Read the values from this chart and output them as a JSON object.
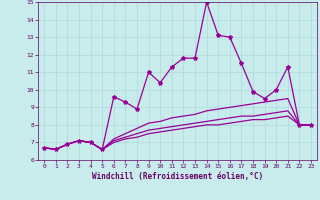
{
  "title": "",
  "xlabel": "Windchill (Refroidissement éolien,°C)",
  "ylabel": "",
  "background_color": "#c8ecec",
  "grid_color": "#b0d8d8",
  "line_color": "#990099",
  "xlim": [
    -0.5,
    23.5
  ],
  "ylim": [
    6,
    15
  ],
  "xticks": [
    0,
    1,
    2,
    3,
    4,
    5,
    6,
    7,
    8,
    9,
    10,
    11,
    12,
    13,
    14,
    15,
    16,
    17,
    18,
    19,
    20,
    21,
    22,
    23
  ],
  "yticks": [
    6,
    7,
    8,
    9,
    10,
    11,
    12,
    13,
    14,
    15
  ],
  "series": [
    [
      6.7,
      6.6,
      6.9,
      7.1,
      7.0,
      6.6,
      9.6,
      9.3,
      8.9,
      11.0,
      10.4,
      11.3,
      11.8,
      11.8,
      15.0,
      13.1,
      13.0,
      11.5,
      9.9,
      9.5,
      10.0,
      11.3,
      8.0,
      8.0
    ],
    [
      6.7,
      6.6,
      6.9,
      7.1,
      7.0,
      6.6,
      7.2,
      7.5,
      7.8,
      8.1,
      8.2,
      8.4,
      8.5,
      8.6,
      8.8,
      8.9,
      9.0,
      9.1,
      9.2,
      9.3,
      9.4,
      9.5,
      8.0,
      8.0
    ],
    [
      6.7,
      6.6,
      6.9,
      7.1,
      7.0,
      6.6,
      7.1,
      7.3,
      7.5,
      7.7,
      7.8,
      7.9,
      8.0,
      8.1,
      8.2,
      8.3,
      8.4,
      8.5,
      8.5,
      8.6,
      8.7,
      8.8,
      8.0,
      8.0
    ],
    [
      6.7,
      6.6,
      6.9,
      7.1,
      7.0,
      6.6,
      7.0,
      7.2,
      7.3,
      7.5,
      7.6,
      7.7,
      7.8,
      7.9,
      8.0,
      8.0,
      8.1,
      8.2,
      8.3,
      8.3,
      8.4,
      8.5,
      8.0,
      8.0
    ]
  ],
  "marker_series": 0,
  "marker": "*",
  "markersize": 3.0,
  "linewidth": 0.9,
  "tick_fontsize": 4.5,
  "xlabel_fontsize": 5.5
}
